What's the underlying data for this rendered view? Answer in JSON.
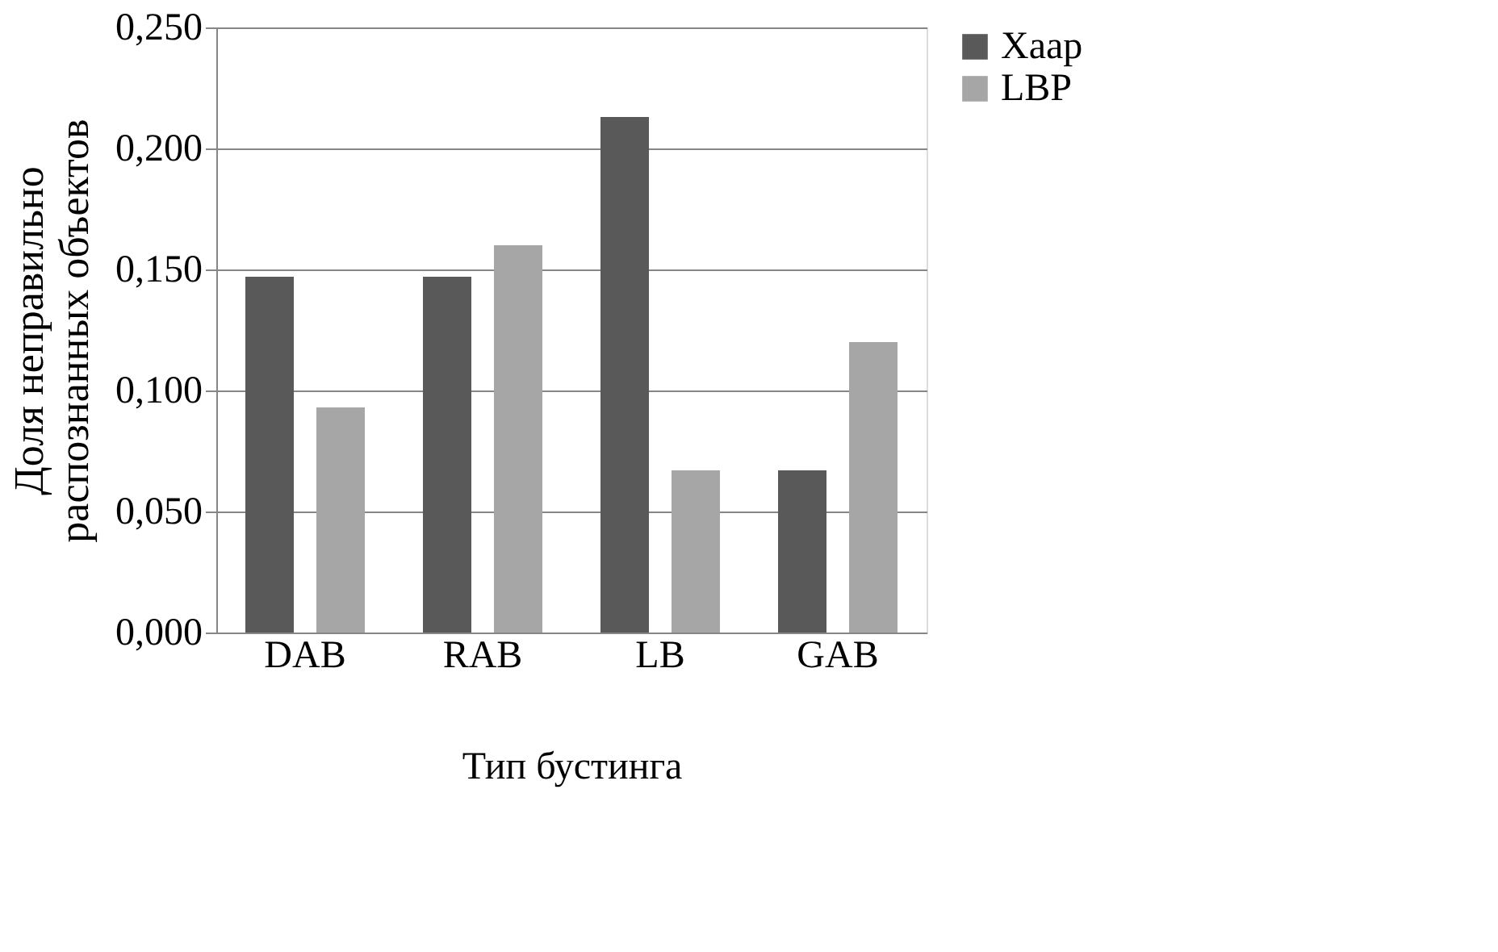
{
  "chart_data": {
    "type": "bar",
    "xlabel": "Тип бустинга",
    "ylabel": "Доля неправильно\nраспознанных объектов",
    "categories": [
      "DAB",
      "RAB",
      "LB",
      "GAB"
    ],
    "series": [
      {
        "name": "Хаар",
        "color": "#595959",
        "values": [
          0.147,
          0.147,
          0.213,
          0.067
        ]
      },
      {
        "name": "LBP",
        "color": "#a6a6a6",
        "values": [
          0.093,
          0.16,
          0.067,
          0.12
        ]
      }
    ],
    "ylim": [
      0,
      0.25
    ],
    "yticks": [
      {
        "value": 0,
        "label": "0,000"
      },
      {
        "value": 0.05,
        "label": "0,050"
      },
      {
        "value": 0.1,
        "label": "0,100"
      },
      {
        "value": 0.15,
        "label": "0,150"
      },
      {
        "value": 0.2,
        "label": "0,200"
      },
      {
        "value": 0.25,
        "label": "0,250"
      }
    ],
    "grid": "y",
    "legend": "right"
  }
}
